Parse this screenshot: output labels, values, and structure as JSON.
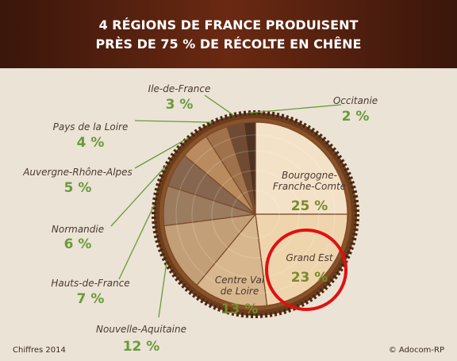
{
  "chart_data": {
    "type": "pie",
    "title": [
      "4 RÉGIONS DE FRANCE PRODUISENT",
      "PRÈS DE 75 % DE RÉCOLTE EN CHÊNE"
    ],
    "categories": [
      "Bourgogne-Franche-Comté",
      "Grand Est",
      "Centre Val de Loire",
      "Nouvelle-Aquitaine",
      "Hauts-de-France",
      "Normandie",
      "Auvergne-Rhône-Alpes",
      "Pays de la Loire",
      "Ile-de-France",
      "Occitanie"
    ],
    "values": [
      25,
      23,
      13,
      12,
      7,
      6,
      5,
      4,
      3,
      2
    ],
    "value_labels": [
      "25 %",
      "23 %",
      "13 %",
      "12 %",
      "7 %",
      "6 %",
      "5 %",
      "4 %",
      "3 %",
      "2 %"
    ],
    "colors": [
      "#f4e2c8",
      "#efd5ae",
      "#d8b78e",
      "#c39f78",
      "#9c7c5f",
      "#86664f",
      "#b98b5f",
      "#a0724b",
      "#6f4b34",
      "#4e3322"
    ],
    "source": "Chiffres 2014",
    "credit": "© Adocom-RP"
  }
}
